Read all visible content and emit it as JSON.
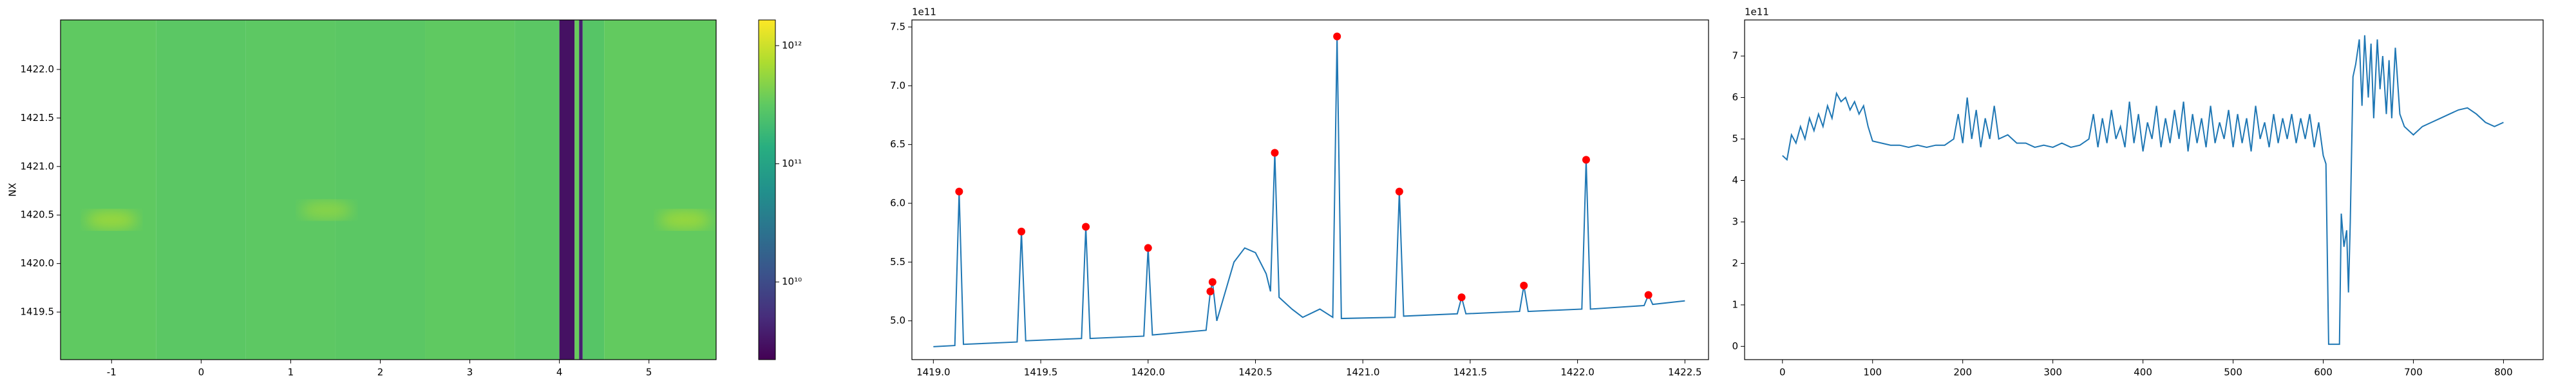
{
  "chart_data": [
    {
      "type": "heatmap",
      "ylabel": "NX",
      "x_edges": [
        -1.57,
        -0.5,
        0.5,
        1.5,
        2.5,
        3.5,
        4.0,
        4.17,
        4.22,
        4.26,
        4.5,
        5.75
      ],
      "values": [
        320000000000,
        300000000000,
        310000000000,
        300000000000,
        320000000000,
        300000000000,
        3000000000,
        350000000000,
        4000000000,
        280000000000,
        330000000000
      ],
      "spots": {
        "x": [
          -1.0,
          1.4,
          5.4
        ],
        "y": [
          1420.45,
          1420.55,
          1420.45
        ],
        "values": [
          600000000000,
          500000000000,
          600000000000
        ]
      },
      "xlim": [
        -1.57,
        5.75
      ],
      "xticks": [
        -1,
        0,
        1,
        2,
        3,
        4,
        5
      ],
      "ylim": [
        1419.01,
        1422.51
      ],
      "yticks": [
        {
          "value": 1419.5,
          "label": "1419.5"
        },
        {
          "value": 1420.0,
          "label": "1420.0"
        },
        {
          "value": 1420.5,
          "label": "1420.5"
        },
        {
          "value": 1421.0,
          "label": "1421.0"
        },
        {
          "value": 1421.5,
          "label": "1421.5"
        },
        {
          "value": 1422.0,
          "label": "1422.0"
        }
      ],
      "colormap": "viridis",
      "color_scale": "log",
      "clim": [
        2200000000,
        1650000000000
      ],
      "cticks": [
        {
          "value": 10000000000,
          "label": "10¹⁰"
        },
        {
          "value": 100000000000,
          "label": "10¹¹"
        },
        {
          "value": 1000000000000,
          "label": "10¹²"
        }
      ]
    },
    {
      "type": "line",
      "y_offset_label": "1e11",
      "series": [
        {
          "style": "line",
          "color": "#1f77b4",
          "x": [
            1419.0,
            1419.1,
            1419.12,
            1419.14,
            1419.39,
            1419.41,
            1419.43,
            1419.69,
            1419.71,
            1419.73,
            1419.98,
            1420.0,
            1420.02,
            1420.27,
            1420.29,
            1420.3,
            1420.32,
            1420.36,
            1420.4,
            1420.45,
            1420.5,
            1420.55,
            1420.57,
            1420.59,
            1420.61,
            1420.67,
            1420.72,
            1420.8,
            1420.86,
            1420.88,
            1420.9,
            1421.15,
            1421.17,
            1421.19,
            1421.44,
            1421.46,
            1421.48,
            1421.73,
            1421.75,
            1421.77,
            1422.02,
            1422.04,
            1422.06,
            1422.31,
            1422.33,
            1422.35,
            1422.5
          ],
          "values": [
            4.78,
            4.79,
            6.1,
            4.8,
            4.82,
            5.76,
            4.83,
            4.85,
            5.8,
            4.85,
            4.87,
            5.62,
            4.88,
            4.92,
            5.25,
            5.33,
            5.0,
            5.25,
            5.5,
            5.62,
            5.58,
            5.4,
            5.25,
            6.43,
            5.2,
            5.1,
            5.03,
            5.1,
            5.03,
            7.42,
            5.02,
            5.03,
            6.1,
            5.04,
            5.06,
            5.2,
            5.06,
            5.08,
            5.3,
            5.08,
            5.1,
            6.37,
            5.1,
            5.13,
            5.22,
            5.14,
            5.17
          ]
        },
        {
          "style": "markers",
          "color": "#ff0000",
          "x": [
            1419.12,
            1419.41,
            1419.71,
            1420.0,
            1420.29,
            1420.3,
            1420.59,
            1420.88,
            1421.17,
            1421.46,
            1421.75,
            1422.04,
            1422.33
          ],
          "values": [
            6.1,
            5.76,
            5.8,
            5.62,
            5.25,
            5.33,
            6.43,
            7.42,
            6.1,
            5.2,
            5.3,
            6.37,
            5.22
          ]
        }
      ],
      "xlim": [
        1418.9,
        1422.61
      ],
      "xticks": [
        {
          "value": 1419.0,
          "label": "1419.0"
        },
        {
          "value": 1419.5,
          "label": "1419.5"
        },
        {
          "value": 1420.0,
          "label": "1420.0"
        },
        {
          "value": 1420.5,
          "label": "1420.5"
        },
        {
          "value": 1421.0,
          "label": "1421.0"
        },
        {
          "value": 1421.5,
          "label": "1421.5"
        },
        {
          "value": 1422.0,
          "label": "1422.0"
        },
        {
          "value": 1422.5,
          "label": "1422.5"
        }
      ],
      "ylim": [
        4.67,
        7.56
      ],
      "yticks": [
        {
          "value": 5.0,
          "label": "5.0"
        },
        {
          "value": 5.5,
          "label": "5.5"
        },
        {
          "value": 6.0,
          "label": "6.0"
        },
        {
          "value": 6.5,
          "label": "6.5"
        },
        {
          "value": 7.0,
          "label": "7.0"
        },
        {
          "value": 7.5,
          "label": "7.5"
        }
      ]
    },
    {
      "type": "line",
      "y_offset_label": "1e11",
      "series": [
        {
          "style": "line",
          "color": "#1f77b4",
          "x": [
            0,
            5,
            10,
            15,
            20,
            25,
            30,
            35,
            40,
            45,
            50,
            55,
            60,
            65,
            70,
            75,
            80,
            85,
            90,
            95,
            100,
            110,
            120,
            130,
            140,
            150,
            160,
            170,
            180,
            190,
            195,
            200,
            205,
            210,
            215,
            220,
            225,
            230,
            235,
            240,
            250,
            260,
            270,
            280,
            290,
            300,
            310,
            320,
            330,
            340,
            345,
            350,
            355,
            360,
            365,
            370,
            375,
            380,
            385,
            390,
            395,
            400,
            405,
            410,
            415,
            420,
            425,
            430,
            435,
            440,
            445,
            450,
            455,
            460,
            465,
            470,
            475,
            480,
            485,
            490,
            495,
            500,
            505,
            510,
            515,
            520,
            525,
            530,
            535,
            540,
            545,
            550,
            555,
            560,
            565,
            570,
            575,
            580,
            585,
            590,
            595,
            600,
            603,
            606,
            615,
            618,
            620,
            623,
            626,
            628,
            630,
            633,
            636,
            640,
            643,
            646,
            650,
            653,
            656,
            660,
            663,
            666,
            670,
            673,
            676,
            680,
            685,
            690,
            700,
            710,
            720,
            730,
            740,
            750,
            760,
            770,
            780,
            790,
            800
          ],
          "values": [
            4.6,
            4.5,
            5.1,
            4.9,
            5.3,
            5.0,
            5.5,
            5.2,
            5.6,
            5.3,
            5.8,
            5.5,
            6.1,
            5.9,
            6.0,
            5.7,
            5.9,
            5.6,
            5.8,
            5.3,
            4.95,
            4.9,
            4.85,
            4.85,
            4.8,
            4.85,
            4.8,
            4.85,
            4.85,
            5.0,
            5.6,
            4.9,
            6.0,
            5.0,
            5.7,
            4.8,
            5.5,
            5.0,
            5.8,
            5.0,
            5.1,
            4.9,
            4.9,
            4.8,
            4.85,
            4.8,
            4.9,
            4.8,
            4.85,
            5.0,
            5.6,
            4.8,
            5.5,
            4.9,
            5.7,
            5.0,
            5.3,
            4.8,
            5.9,
            4.9,
            5.6,
            4.7,
            5.4,
            5.0,
            5.8,
            4.8,
            5.5,
            4.9,
            5.7,
            5.0,
            5.9,
            4.7,
            5.6,
            4.9,
            5.5,
            4.8,
            5.8,
            4.9,
            5.4,
            5.0,
            5.7,
            4.8,
            5.6,
            4.9,
            5.5,
            4.7,
            5.8,
            5.0,
            5.4,
            4.8,
            5.6,
            4.9,
            5.5,
            5.0,
            5.6,
            4.9,
            5.5,
            5.0,
            5.6,
            4.8,
            5.4,
            4.6,
            4.4,
            0.05,
            0.05,
            0.05,
            3.2,
            2.4,
            2.8,
            1.3,
            3.0,
            6.5,
            6.8,
            7.4,
            5.8,
            7.5,
            6.0,
            7.3,
            5.5,
            7.4,
            6.2,
            7.0,
            5.6,
            6.9,
            5.5,
            7.2,
            5.6,
            5.3,
            5.1,
            5.3,
            5.4,
            5.5,
            5.6,
            5.7,
            5.75,
            5.6,
            5.4,
            5.3,
            5.4
          ]
        }
      ],
      "xlim": [
        -42,
        844
      ],
      "xticks": [
        0,
        100,
        200,
        300,
        400,
        500,
        600,
        700,
        800
      ],
      "ylim": [
        -0.32,
        7.87
      ],
      "yticks": [
        0,
        1,
        2,
        3,
        4,
        5,
        6,
        7
      ]
    }
  ]
}
